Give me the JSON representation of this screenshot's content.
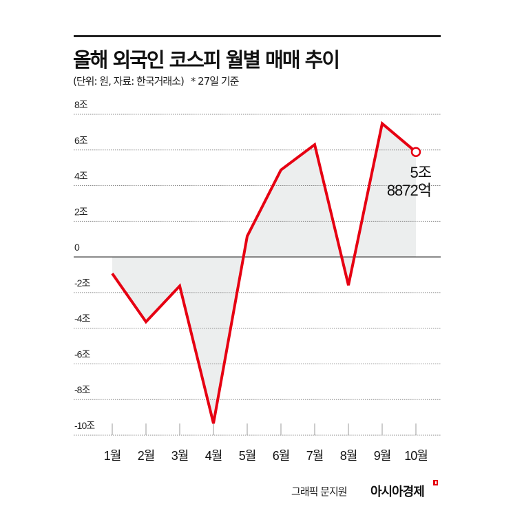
{
  "header": {
    "title": "올해 외국인 코스피 월별 매매 추이",
    "subtitle": "(단위: 원, 자료: 한국거래소)",
    "note": "* 27일 기준"
  },
  "chart_data": {
    "type": "line",
    "title": "올해 외국인 코스피 월별 매매 추이",
    "categories": [
      "1월",
      "2월",
      "3월",
      "4월",
      "5월",
      "6월",
      "7월",
      "8월",
      "9월",
      "10월"
    ],
    "values": [
      -0.93,
      -3.64,
      -1.63,
      -9.34,
      1.16,
      4.88,
      6.3,
      -1.59,
      7.48,
      5.8872
    ],
    "unit": "조",
    "ylim": [
      -10,
      8
    ],
    "yticks": [
      8,
      6,
      4,
      2,
      0,
      -2,
      -4,
      -6,
      -8,
      -10
    ],
    "ytick_labels": [
      "8조",
      "6조",
      "4조",
      "2조",
      "0",
      "-2조",
      "-4조",
      "-6조",
      "-8조",
      "-10조"
    ],
    "grid": true,
    "grid_style": "dotted",
    "area_fill": true,
    "annotation": {
      "line1": "5조",
      "line2": "8872억",
      "category": "10월"
    },
    "colors": {
      "line": "#e60012",
      "fill": "#eceeee",
      "grid": "#888888",
      "axis": "#333333"
    }
  },
  "footer": {
    "credit": "그래픽 문지원",
    "brand": "아시아경제"
  }
}
